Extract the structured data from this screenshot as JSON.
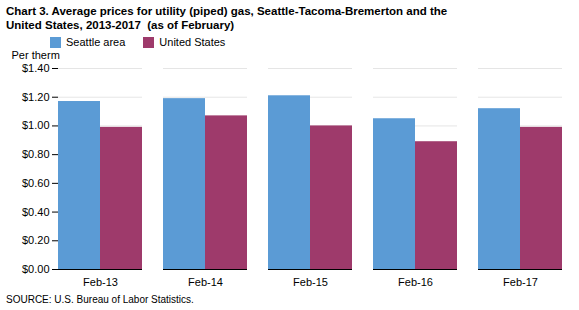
{
  "chart_data": {
    "type": "bar",
    "title": "Chart 3. Average prices for utility (piped) gas, Seattle-Tacoma-Bremerton and the\nUnited States, 2013-2017  (as of February)",
    "y_label": "Per therm",
    "source": "SOURCE: U.S. Bureau of Labor Statistics.",
    "categories": [
      "Feb-13",
      "Feb-14",
      "Feb-15",
      "Feb-16",
      "Feb-17"
    ],
    "series": [
      {
        "name": "Seattle area",
        "color": "#5B9BD5",
        "values": [
          1.17,
          1.19,
          1.21,
          1.05,
          1.12
        ]
      },
      {
        "name": "United States",
        "color": "#9E3A6B",
        "values": [
          0.99,
          1.07,
          1.0,
          0.89,
          0.99
        ]
      }
    ],
    "ylim": [
      0,
      1.4
    ],
    "yticks": [
      {
        "value": 0.0,
        "label": "$0.00"
      },
      {
        "value": 0.2,
        "label": "$0.20"
      },
      {
        "value": 0.4,
        "label": "$0.40"
      },
      {
        "value": 0.6,
        "label": "$0.60"
      },
      {
        "value": 0.8,
        "label": "$0.80"
      },
      {
        "value": 1.0,
        "label": "$1.00"
      },
      {
        "value": 1.2,
        "label": "$1.20"
      },
      {
        "value": 1.4,
        "label": "$1.40"
      }
    ],
    "grid": true,
    "legend": "upper left"
  }
}
